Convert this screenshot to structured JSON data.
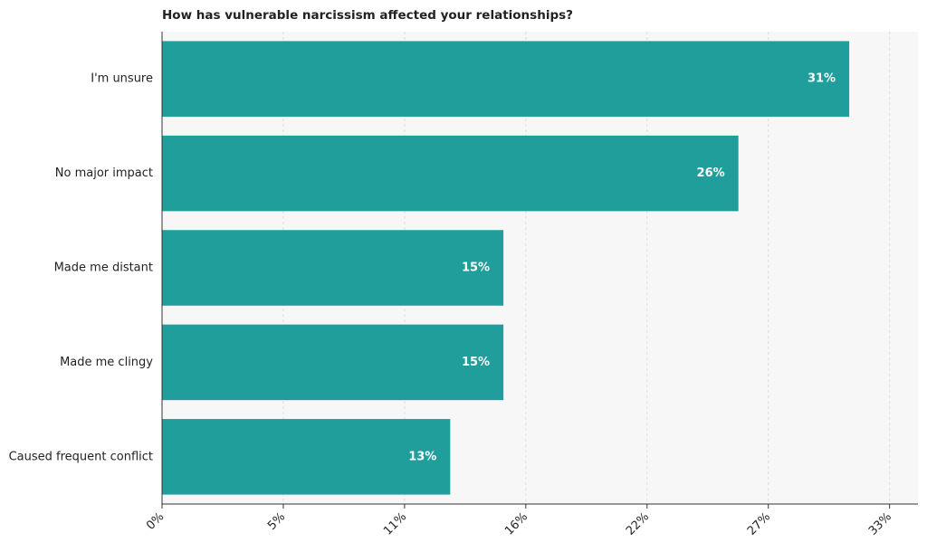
{
  "chart_data": {
    "type": "bar",
    "orientation": "horizontal",
    "title": "How has vulnerable narcissism affected your relationships?",
    "categories": [
      "I'm unsure",
      "No major impact",
      "Made me distant",
      "Made me clingy",
      "Caused frequent conflict"
    ],
    "values": [
      31,
      26,
      15.4,
      15.4,
      13
    ],
    "value_labels": [
      "31%",
      "26%",
      "15%",
      "15%",
      "13%"
    ],
    "color": "#1f9e9c",
    "xlim": [
      0,
      34.1
    ],
    "xticks": [
      {
        "value": 0,
        "label": "0%"
      },
      {
        "value": 5.47,
        "label": "5%"
      },
      {
        "value": 10.94,
        "label": "11%"
      },
      {
        "value": 16.41,
        "label": "16%"
      },
      {
        "value": 21.88,
        "label": "22%"
      },
      {
        "value": 27.35,
        "label": "27%"
      },
      {
        "value": 32.82,
        "label": "33%"
      }
    ],
    "grid": true
  }
}
